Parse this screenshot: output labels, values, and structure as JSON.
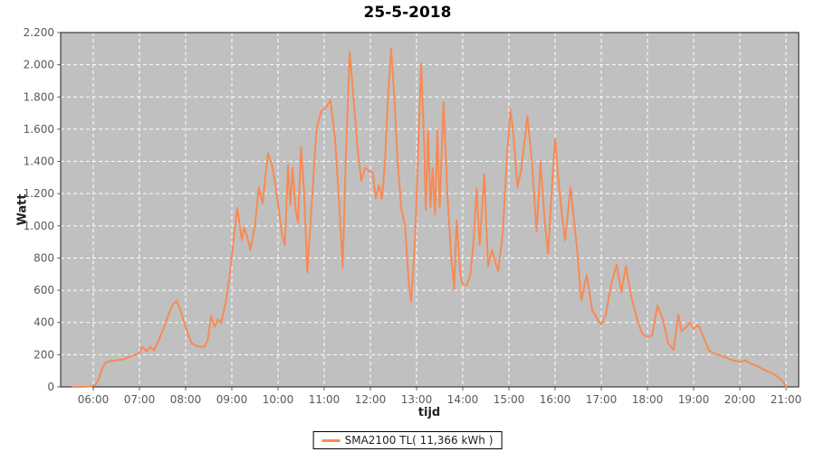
{
  "colors": {
    "series": "#f78a54",
    "plot_background": "#c0c0c0",
    "grid": "#ffffff",
    "plot_border": "#1a1a1a",
    "tick": "#666666"
  },
  "legend": {
    "label": "SMA2100 TL( 11,366 kWh )"
  },
  "chart_data": {
    "type": "line",
    "title": "25-5-2018",
    "xlabel": "tijd",
    "ylabel": "Watt",
    "ylim": [
      0,
      2200
    ],
    "x_range_hours": [
      5.29,
      21.27
    ],
    "grid": true,
    "grid_style": "white dashed on gray plot",
    "legend_position": "bottom-center",
    "y_ticks": [
      "0",
      "200",
      "400",
      "600",
      "800",
      "1.000",
      "1.200",
      "1.400",
      "1.600",
      "1.800",
      "2.000",
      "2.200"
    ],
    "y_tick_values": [
      0,
      200,
      400,
      600,
      800,
      1000,
      1200,
      1400,
      1600,
      1800,
      2000,
      2200
    ],
    "x_ticks": [
      "06:00",
      "07:00",
      "08:00",
      "09:00",
      "10:00",
      "11:00",
      "12:00",
      "13:00",
      "14:00",
      "15:00",
      "16:00",
      "17:00",
      "18:00",
      "19:00",
      "20:00",
      "21:00"
    ],
    "series": [
      {
        "name": "SMA2100 TL( 11,366 kWh )",
        "unit": "Watt",
        "points": [
          [
            "05:33",
            0
          ],
          [
            "05:45",
            0
          ],
          [
            "05:57",
            3
          ],
          [
            "06:03",
            12
          ],
          [
            "06:08",
            60
          ],
          [
            "06:12",
            120
          ],
          [
            "06:16",
            150
          ],
          [
            "06:22",
            160
          ],
          [
            "06:30",
            165
          ],
          [
            "06:38",
            170
          ],
          [
            "06:46",
            185
          ],
          [
            "06:54",
            200
          ],
          [
            "07:00",
            210
          ],
          [
            "07:04",
            250
          ],
          [
            "07:09",
            220
          ],
          [
            "07:14",
            250
          ],
          [
            "07:19",
            228
          ],
          [
            "07:25",
            290
          ],
          [
            "07:31",
            360
          ],
          [
            "07:37",
            440
          ],
          [
            "07:43",
            510
          ],
          [
            "07:48",
            535
          ],
          [
            "07:53",
            480
          ],
          [
            "07:58",
            400
          ],
          [
            "08:03",
            330
          ],
          [
            "08:08",
            270
          ],
          [
            "08:14",
            255
          ],
          [
            "08:20",
            250
          ],
          [
            "08:25",
            248
          ],
          [
            "08:29",
            300
          ],
          [
            "08:33",
            440
          ],
          [
            "08:38",
            375
          ],
          [
            "08:42",
            420
          ],
          [
            "08:46",
            395
          ],
          [
            "08:52",
            520
          ],
          [
            "08:57",
            680
          ],
          [
            "09:02",
            900
          ],
          [
            "09:07",
            1110
          ],
          [
            "09:13",
            910
          ],
          [
            "09:16",
            990
          ],
          [
            "09:20",
            930
          ],
          [
            "09:24",
            850
          ],
          [
            "09:30",
            1000
          ],
          [
            "09:35",
            1240
          ],
          [
            "09:40",
            1140
          ],
          [
            "09:47",
            1450
          ],
          [
            "09:52",
            1380
          ],
          [
            "09:57",
            1250
          ],
          [
            "10:01",
            1100
          ],
          [
            "10:05",
            950
          ],
          [
            "10:09",
            880
          ],
          [
            "10:13",
            1380
          ],
          [
            "10:16",
            1130
          ],
          [
            "10:19",
            1360
          ],
          [
            "10:23",
            1100
          ],
          [
            "10:26",
            1020
          ],
          [
            "10:30",
            1490
          ],
          [
            "10:34",
            1200
          ],
          [
            "10:38",
            710
          ],
          [
            "10:44",
            1150
          ],
          [
            "10:50",
            1600
          ],
          [
            "10:56",
            1710
          ],
          [
            "11:02",
            1730
          ],
          [
            "11:08",
            1780
          ],
          [
            "11:14",
            1550
          ],
          [
            "11:20",
            1100
          ],
          [
            "11:24",
            740
          ],
          [
            "11:28",
            1400
          ],
          [
            "11:33",
            2080
          ],
          [
            "11:38",
            1800
          ],
          [
            "11:43",
            1500
          ],
          [
            "11:48",
            1280
          ],
          [
            "11:53",
            1360
          ],
          [
            "11:58",
            1340
          ],
          [
            "12:03",
            1330
          ],
          [
            "12:07",
            1170
          ],
          [
            "12:11",
            1250
          ],
          [
            "12:15",
            1165
          ],
          [
            "12:19",
            1400
          ],
          [
            "12:23",
            1800
          ],
          [
            "12:27",
            2100
          ],
          [
            "12:31",
            1800
          ],
          [
            "12:35",
            1430
          ],
          [
            "12:40",
            1110
          ],
          [
            "12:45",
            1000
          ],
          [
            "12:50",
            640
          ],
          [
            "12:53",
            530
          ],
          [
            "12:58",
            900
          ],
          [
            "13:03",
            1600
          ],
          [
            "13:06",
            2010
          ],
          [
            "13:10",
            1500
          ],
          [
            "13:12",
            1100
          ],
          [
            "13:15",
            1590
          ],
          [
            "13:18",
            1115
          ],
          [
            "13:21",
            1360
          ],
          [
            "13:24",
            1070
          ],
          [
            "13:27",
            1595
          ],
          [
            "13:30",
            1115
          ],
          [
            "13:35",
            1770
          ],
          [
            "13:40",
            1200
          ],
          [
            "13:45",
            800
          ],
          [
            "13:49",
            605
          ],
          [
            "13:52",
            1035
          ],
          [
            "13:57",
            700
          ],
          [
            "14:00",
            635
          ],
          [
            "14:05",
            630
          ],
          [
            "14:10",
            700
          ],
          [
            "14:14",
            900
          ],
          [
            "14:18",
            1230
          ],
          [
            "14:22",
            880
          ],
          [
            "14:28",
            1320
          ],
          [
            "14:33",
            750
          ],
          [
            "14:38",
            850
          ],
          [
            "14:42",
            780
          ],
          [
            "14:46",
            720
          ],
          [
            "14:52",
            950
          ],
          [
            "14:57",
            1400
          ],
          [
            "15:02",
            1720
          ],
          [
            "15:06",
            1560
          ],
          [
            "15:11",
            1240
          ],
          [
            "15:16",
            1350
          ],
          [
            "15:24",
            1680
          ],
          [
            "15:30",
            1390
          ],
          [
            "15:36",
            965
          ],
          [
            "15:41",
            1395
          ],
          [
            "15:47",
            1000
          ],
          [
            "15:51",
            825
          ],
          [
            "15:56",
            1250
          ],
          [
            "16:00",
            1540
          ],
          [
            "16:05",
            1250
          ],
          [
            "16:09",
            1070
          ],
          [
            "16:13",
            910
          ],
          [
            "16:20",
            1240
          ],
          [
            "16:28",
            880
          ],
          [
            "16:34",
            537
          ],
          [
            "16:41",
            695
          ],
          [
            "16:48",
            480
          ],
          [
            "16:56",
            410
          ],
          [
            "17:00",
            387
          ],
          [
            "17:06",
            450
          ],
          [
            "17:13",
            640
          ],
          [
            "17:20",
            760
          ],
          [
            "17:26",
            590
          ],
          [
            "17:32",
            750
          ],
          [
            "17:39",
            560
          ],
          [
            "17:46",
            430
          ],
          [
            "17:53",
            330
          ],
          [
            "18:00",
            310
          ],
          [
            "18:06",
            320
          ],
          [
            "18:13",
            505
          ],
          [
            "18:20",
            420
          ],
          [
            "18:27",
            270
          ],
          [
            "18:34",
            230
          ],
          [
            "18:40",
            450
          ],
          [
            "18:44",
            345
          ],
          [
            "18:50",
            370
          ],
          [
            "18:55",
            400
          ],
          [
            "19:00",
            360
          ],
          [
            "19:06",
            385
          ],
          [
            "19:12",
            320
          ],
          [
            "19:20",
            225
          ],
          [
            "19:28",
            205
          ],
          [
            "19:36",
            195
          ],
          [
            "19:45",
            175
          ],
          [
            "19:53",
            163
          ],
          [
            "20:00",
            155
          ],
          [
            "20:07",
            165
          ],
          [
            "20:14",
            145
          ],
          [
            "20:22",
            130
          ],
          [
            "20:30",
            110
          ],
          [
            "20:40",
            90
          ],
          [
            "20:50",
            60
          ],
          [
            "20:57",
            30
          ],
          [
            "21:00",
            0
          ]
        ]
      }
    ]
  }
}
